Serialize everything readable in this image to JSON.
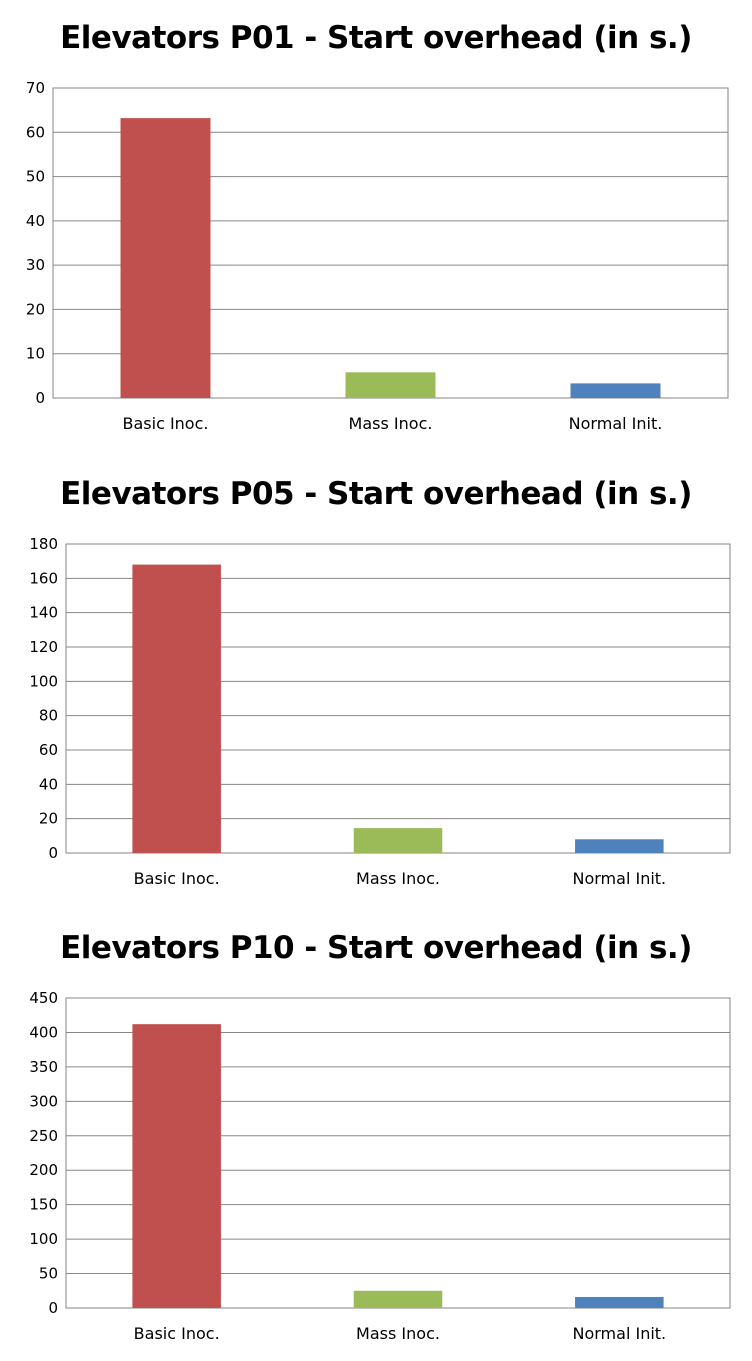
{
  "chart_data": [
    {
      "type": "bar",
      "title": "Elevators P01 - Start overhead (in s.)",
      "categories": [
        "Basic Inoc.",
        "Mass Inoc.",
        "Normal Init."
      ],
      "values": [
        63.2,
        5.8,
        3.3
      ],
      "colors": [
        "#C0504D",
        "#9BBB59",
        "#4F81BD"
      ],
      "ylim": [
        0,
        70
      ],
      "yticks": [
        0,
        10,
        20,
        30,
        40,
        50,
        60,
        70
      ],
      "grid": true,
      "legend": "none"
    },
    {
      "type": "bar",
      "title": "Elevators P05 - Start overhead (in s.)",
      "categories": [
        "Basic Inoc.",
        "Mass Inoc.",
        "Normal Init."
      ],
      "values": [
        168,
        14.5,
        8
      ],
      "colors": [
        "#C0504D",
        "#9BBB59",
        "#4F81BD"
      ],
      "ylim": [
        0,
        180
      ],
      "yticks": [
        0,
        20,
        40,
        60,
        80,
        100,
        120,
        140,
        160,
        180
      ],
      "grid": true,
      "legend": "none"
    },
    {
      "type": "bar",
      "title": "Elevators P10 - Start overhead (in s.)",
      "categories": [
        "Basic Inoc.",
        "Mass Inoc.",
        "Normal Init."
      ],
      "values": [
        412,
        25,
        16
      ],
      "colors": [
        "#C0504D",
        "#9BBB59",
        "#4F81BD"
      ],
      "ylim": [
        0,
        450
      ],
      "yticks": [
        0,
        50,
        100,
        150,
        200,
        250,
        300,
        350,
        400,
        450
      ],
      "grid": true,
      "legend": "none"
    }
  ]
}
